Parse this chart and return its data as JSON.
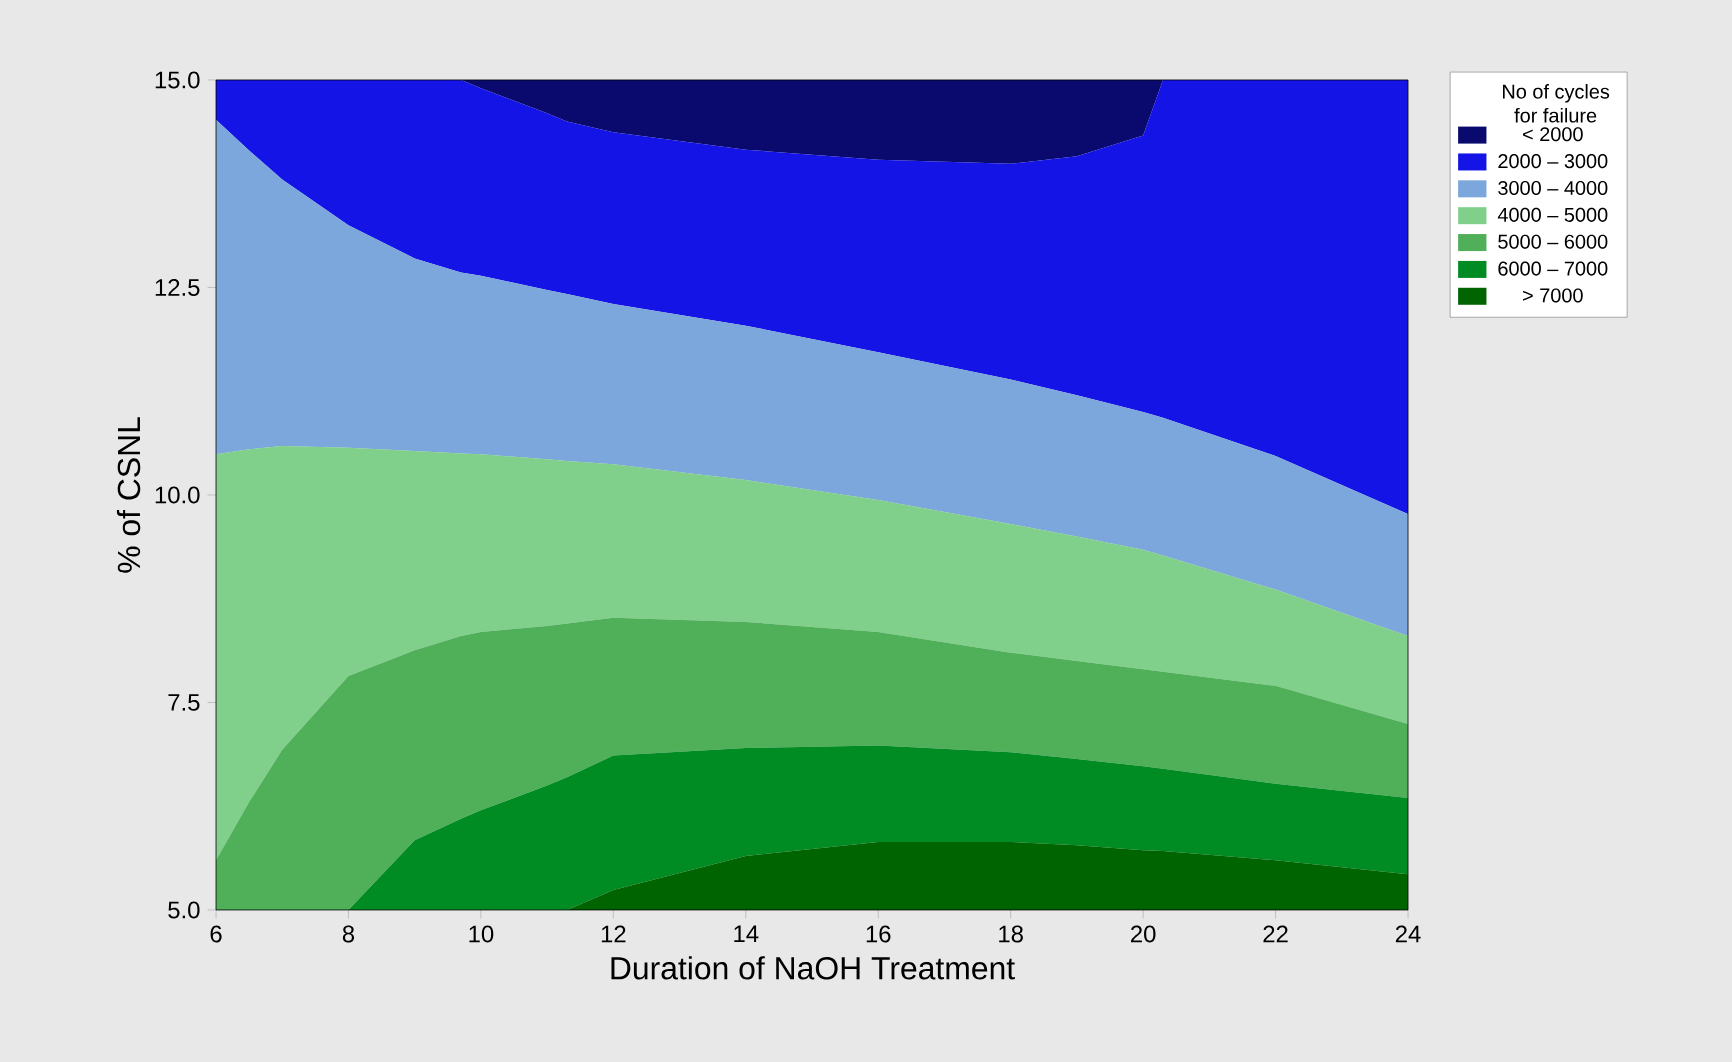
{
  "chart_data": {
    "type": "area",
    "xlabel": "Duration of NaOH Treatment",
    "ylabel": "% of CSNL",
    "legend_title": "No of cycles for failure",
    "legend": "right",
    "x": [
      6,
      6.5,
      7,
      8,
      9,
      9.7,
      10,
      11,
      11.3,
      12,
      14,
      16,
      18,
      19,
      20,
      20.3,
      22,
      24
    ],
    "xlim": [
      6,
      24
    ],
    "ylim": [
      5,
      15
    ],
    "xticks": [
      6,
      8,
      10,
      12,
      14,
      16,
      18,
      20,
      22,
      24
    ],
    "yticks": [
      {
        "value": 5,
        "label": "5.0"
      },
      {
        "value": 7.5,
        "label": "7.5"
      },
      {
        "value": 10,
        "label": "10.0"
      },
      {
        "value": 12.5,
        "label": "12.5"
      },
      {
        "value": 15,
        "label": "15.0"
      }
    ],
    "series": [
      {
        "name": "< 2000",
        "color": "#0a0a6e",
        "values": [
          null,
          null,
          null,
          null,
          null,
          15,
          15,
          15,
          15,
          15,
          15,
          15,
          15,
          15,
          15,
          15,
          null,
          null
        ]
      },
      {
        "name": "2000 – 3000",
        "color": "#1414e6",
        "values": [
          15,
          15,
          15,
          15,
          15,
          15,
          14.9,
          14.6,
          14.5,
          14.37,
          14.16,
          14.04,
          13.99,
          14.08,
          14.33,
          15,
          15,
          15
        ]
      },
      {
        "name": "3000 – 4000",
        "color": "#7ba7dc",
        "values": [
          14.52,
          14.15,
          13.8,
          13.25,
          12.85,
          12.68,
          12.64,
          12.47,
          12.42,
          12.3,
          12.04,
          11.72,
          11.39,
          11.2,
          11.0,
          10.93,
          10.47,
          9.77
        ]
      },
      {
        "name": "4000 – 5000",
        "color": "#80d08c",
        "values": [
          10.49,
          10.55,
          10.59,
          10.57,
          10.53,
          10.5,
          10.49,
          10.43,
          10.41,
          10.37,
          10.18,
          9.94,
          9.65,
          9.5,
          9.34,
          9.27,
          8.86,
          8.3
        ]
      },
      {
        "name": "5000 – 6000",
        "color": "#50b05a",
        "values": [
          5.6,
          6.3,
          6.93,
          7.82,
          8.13,
          8.3,
          8.35,
          8.42,
          8.45,
          8.52,
          8.47,
          8.35,
          8.1,
          8.0,
          7.9,
          7.87,
          7.7,
          7.24
        ]
      },
      {
        "name": "6000 – 7000",
        "color": "#008c23",
        "values": [
          null,
          null,
          null,
          5,
          5.84,
          6.1,
          6.2,
          6.5,
          6.6,
          6.86,
          6.95,
          6.98,
          6.9,
          6.82,
          6.73,
          6.7,
          6.52,
          6.35
        ]
      },
      {
        "name": "> 7000",
        "color": "#006400",
        "values": [
          null,
          null,
          null,
          null,
          null,
          null,
          null,
          null,
          5,
          5.24,
          5.65,
          5.82,
          5.82,
          5.78,
          5.72,
          5.71,
          5.6,
          5.43
        ]
      }
    ]
  }
}
